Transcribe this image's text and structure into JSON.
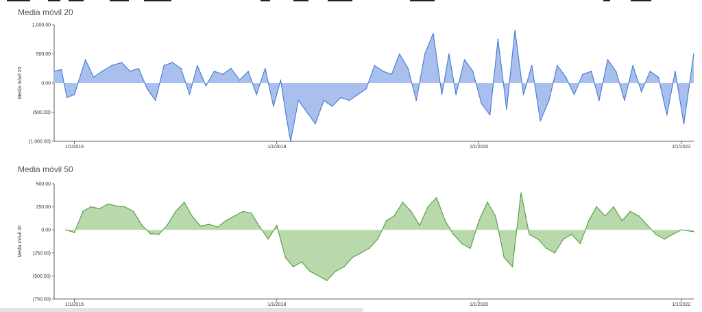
{
  "charts": [
    {
      "title": "Media móvil 20",
      "ylabel": "Media móvil 20",
      "yticks": [
        "1,000.00",
        "500.00",
        "0.00",
        "(500.00)",
        "(1,000.00)"
      ],
      "xticks": [
        "1/1/2016",
        "1/1/2018",
        "1/1/2020",
        "1/1/2022"
      ],
      "color": "#4a7fd6",
      "fill": "#a9c0ee"
    },
    {
      "title": "Media móvil 50",
      "ylabel": "Media móvil 20",
      "yticks": [
        "500.00",
        "250.00",
        "0.00",
        "(250.00)",
        "(500.00)",
        "(750.00)"
      ],
      "xticks": [
        "1/1/2016",
        "1/1/2018",
        "1/1/2020",
        "1/1/2022"
      ],
      "color": "#5aa046",
      "fill": "#b9d9ac"
    }
  ],
  "chart_data": [
    {
      "type": "area",
      "title": "Media móvil 20",
      "xlabel": "",
      "ylabel": "Media móvil 20",
      "ylim": [
        -1000,
        1000
      ],
      "xlim": [
        "2015-10-20",
        "2022-02-15"
      ],
      "x_ticks": [
        "2016-01-01",
        "2018-01-01",
        "2020-01-01",
        "2022-01-01"
      ],
      "series": [
        {
          "x": [
            "2015-10-20",
            "2015-11-15",
            "2015-12-05",
            "2016-01-01",
            "2016-02-10",
            "2016-03-10",
            "2016-04-10",
            "2016-05-15",
            "2016-06-20",
            "2016-07-20",
            "2016-08-20",
            "2016-09-20",
            "2016-10-20",
            "2016-11-20",
            "2016-12-20",
            "2017-01-20",
            "2017-02-20",
            "2017-03-20",
            "2017-04-20",
            "2017-05-20",
            "2017-06-20",
            "2017-07-20",
            "2017-08-20",
            "2017-09-20",
            "2017-10-20",
            "2017-11-20",
            "2017-12-20",
            "2018-01-15",
            "2018-02-05",
            "2018-02-20",
            "2018-03-20",
            "2018-04-20",
            "2018-05-20",
            "2018-06-20",
            "2018-07-20",
            "2018-08-20",
            "2018-09-20",
            "2018-10-20",
            "2018-11-20",
            "2018-12-20",
            "2019-01-20",
            "2019-02-20",
            "2019-03-20",
            "2019-04-20",
            "2019-05-20",
            "2019-06-20",
            "2019-07-20",
            "2019-08-20",
            "2019-09-15",
            "2019-10-10",
            "2019-11-10",
            "2019-12-10",
            "2020-01-10",
            "2020-02-10",
            "2020-03-10",
            "2020-04-10",
            "2020-05-10",
            "2020-06-10",
            "2020-07-10",
            "2020-08-10",
            "2020-09-10",
            "2020-10-10",
            "2020-11-10",
            "2020-12-10",
            "2021-01-10",
            "2021-02-10",
            "2021-03-10",
            "2021-04-10",
            "2021-05-10",
            "2021-06-10",
            "2021-07-10",
            "2021-08-10",
            "2021-09-10",
            "2021-10-10",
            "2021-11-10",
            "2021-12-10",
            "2022-01-10",
            "2022-02-15"
          ],
          "y": [
            200,
            230,
            -250,
            -200,
            400,
            100,
            200,
            300,
            350,
            200,
            250,
            -100,
            -300,
            300,
            350,
            250,
            -200,
            300,
            -50,
            200,
            150,
            250,
            50,
            200,
            -200,
            250,
            -400,
            50,
            -600,
            -1000,
            -300,
            -500,
            -700,
            -300,
            -400,
            -250,
            -300,
            -200,
            -100,
            300,
            200,
            150,
            500,
            250,
            -300,
            500,
            850,
            -200,
            500,
            -200,
            400,
            200,
            -350,
            -550,
            750,
            -450,
            900,
            -200,
            300,
            -650,
            -300,
            300,
            100,
            -200,
            150,
            200,
            -300,
            400,
            200,
            -300,
            300,
            -150,
            200,
            100,
            -550,
            200,
            -700,
            500
          ]
        }
      ]
    },
    {
      "type": "area",
      "title": "Media móvil 50",
      "xlabel": "",
      "ylabel": "Media móvil 20",
      "ylim": [
        -750,
        500
      ],
      "xlim": [
        "2015-10-20",
        "2022-02-15"
      ],
      "x_ticks": [
        "2016-01-01",
        "2018-01-01",
        "2020-01-01",
        "2022-01-01"
      ],
      "series": [
        {
          "x": [
            "2015-12-01",
            "2016-01-01",
            "2016-02-01",
            "2016-03-01",
            "2016-04-01",
            "2016-05-01",
            "2016-06-01",
            "2016-07-01",
            "2016-08-01",
            "2016-09-01",
            "2016-10-01",
            "2016-11-01",
            "2016-12-01",
            "2017-01-01",
            "2017-02-01",
            "2017-03-01",
            "2017-04-01",
            "2017-05-01",
            "2017-06-01",
            "2017-07-01",
            "2017-08-01",
            "2017-09-01",
            "2017-10-01",
            "2017-11-01",
            "2017-12-01",
            "2018-01-01",
            "2018-02-01",
            "2018-03-01",
            "2018-04-01",
            "2018-05-01",
            "2018-06-01",
            "2018-07-01",
            "2018-08-01",
            "2018-09-01",
            "2018-10-01",
            "2018-11-01",
            "2018-12-01",
            "2019-01-01",
            "2019-02-01",
            "2019-03-01",
            "2019-04-01",
            "2019-05-01",
            "2019-06-01",
            "2019-07-01",
            "2019-08-01",
            "2019-09-01",
            "2019-10-01",
            "2019-11-01",
            "2019-12-01",
            "2020-01-01",
            "2020-02-01",
            "2020-03-01",
            "2020-04-01",
            "2020-05-01",
            "2020-06-01",
            "2020-07-01",
            "2020-08-01",
            "2020-09-01",
            "2020-10-01",
            "2020-11-01",
            "2020-12-01",
            "2021-01-01",
            "2021-02-01",
            "2021-03-01",
            "2021-04-01",
            "2021-05-01",
            "2021-06-01",
            "2021-07-01",
            "2021-08-01",
            "2021-09-01",
            "2021-10-01",
            "2021-11-01",
            "2021-12-01",
            "2022-01-01",
            "2022-02-15"
          ],
          "y": [
            0,
            -30,
            200,
            250,
            230,
            280,
            260,
            250,
            200,
            50,
            -40,
            -50,
            50,
            200,
            300,
            150,
            40,
            60,
            30,
            100,
            150,
            200,
            180,
            30,
            -100,
            50,
            -300,
            -400,
            -350,
            -450,
            -500,
            -550,
            -450,
            -400,
            -300,
            -250,
            -200,
            -100,
            100,
            150,
            300,
            200,
            50,
            250,
            350,
            100,
            -50,
            -150,
            -200,
            100,
            300,
            150,
            -300,
            -400,
            400,
            -50,
            -100,
            -200,
            -250,
            -100,
            -50,
            -150,
            100,
            250,
            150,
            250,
            100,
            200,
            150,
            50,
            -50,
            -100,
            -50,
            0,
            -20
          ]
        }
      ]
    }
  ]
}
